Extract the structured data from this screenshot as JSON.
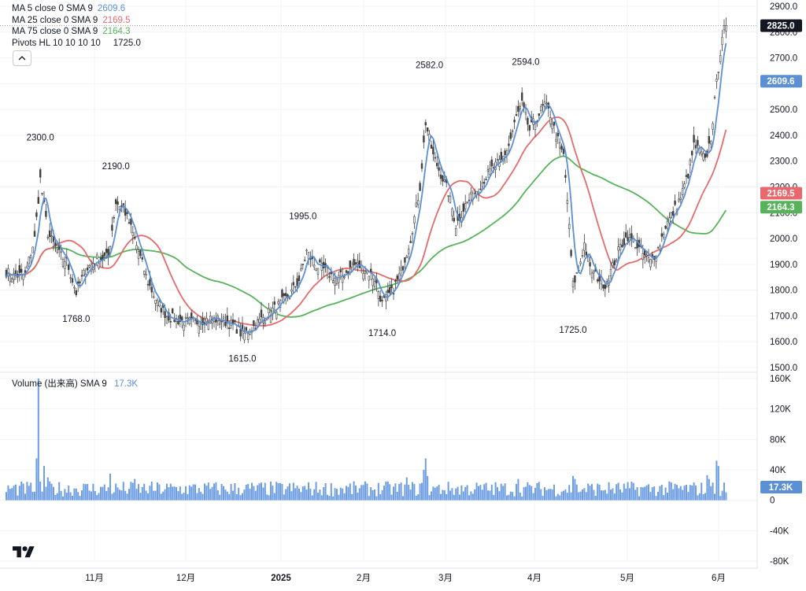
{
  "colors": {
    "ma5": "#5b8fd6",
    "ma25": "#e8696b",
    "ma75": "#57b35a",
    "candle_up_fill": "#ffffff",
    "candle_down_fill": "#404040",
    "volume": "#6d9de2",
    "grid": "#f0f3fa",
    "text": "#131722",
    "axis_label_dark": "#131722"
  },
  "legend": {
    "ma5": {
      "label": "MA 5 close 0 SMA 9",
      "value": "2609.6"
    },
    "ma25": {
      "label": "MA 25 close 0 SMA 9",
      "value": "2169.5"
    },
    "ma75": {
      "label": "MA 75 close 0 SMA 9",
      "value": "2164.3"
    },
    "pivots": {
      "label": "Pivots HL 10 10 10 10",
      "value": "1725.0"
    }
  },
  "volume_legend": {
    "label": "Volume (出来高) SMA 9",
    "value": "17.3K"
  },
  "icons": {
    "collapse": "chevron-up-icon",
    "logo": "tradingview-logo"
  },
  "chart_data": [
    {
      "type": "candlestick",
      "title": "",
      "ylim": [
        1500,
        2900
      ],
      "y_ticks": [
        "2900.0",
        "2800.0",
        "2700.0",
        "2600.0",
        "2500.0",
        "2400.0",
        "2300.0",
        "2200.0",
        "2100.0",
        "2000.0",
        "1900.0",
        "1800.0",
        "1700.0",
        "1600.0",
        "1500.0"
      ],
      "x_ticks": [
        "11月",
        "12月",
        "2025",
        "2月",
        "3月",
        "4月",
        "5月",
        "6月"
      ],
      "price_badges": [
        {
          "value": "2825.0",
          "series": "last"
        },
        {
          "value": "2609.6",
          "series": "ma5"
        },
        {
          "value": "2169.5",
          "series": "ma25"
        },
        {
          "value": "2164.3",
          "series": "ma75"
        }
      ],
      "pivot_labels": [
        {
          "text": "2300.0",
          "kind": "high",
          "value": 2300,
          "bar": 18
        },
        {
          "text": "2190.0",
          "kind": "high",
          "value": 2190,
          "bar": 58
        },
        {
          "text": "1995.0",
          "kind": "high",
          "value": 1995,
          "bar": 157
        },
        {
          "text": "2582.0",
          "kind": "high",
          "value": 2582,
          "bar": 224
        },
        {
          "text": "2594.0",
          "kind": "high",
          "value": 2594,
          "bar": 275
        },
        {
          "text": "1768.0",
          "kind": "low",
          "value": 1768,
          "bar": 37
        },
        {
          "text": "1615.0",
          "kind": "low",
          "value": 1615,
          "bar": 125
        },
        {
          "text": "1714.0",
          "kind": "low",
          "value": 1714,
          "bar": 199
        },
        {
          "text": "1725.0",
          "kind": "low",
          "value": 1725,
          "bar": 300
        }
      ],
      "anchors": [
        [
          0,
          1870
        ],
        [
          4,
          1855
        ],
        [
          10,
          1860
        ],
        [
          15,
          2000
        ],
        [
          18,
          2230
        ],
        [
          22,
          2020
        ],
        [
          28,
          1940
        ],
        [
          32,
          1910
        ],
        [
          37,
          1790
        ],
        [
          42,
          1880
        ],
        [
          48,
          1920
        ],
        [
          54,
          1930
        ],
        [
          58,
          2140
        ],
        [
          62,
          2120
        ],
        [
          66,
          2040
        ],
        [
          70,
          1950
        ],
        [
          75,
          1830
        ],
        [
          80,
          1750
        ],
        [
          85,
          1700
        ],
        [
          92,
          1680
        ],
        [
          100,
          1675
        ],
        [
          108,
          1690
        ],
        [
          115,
          1680
        ],
        [
          121,
          1660
        ],
        [
          125,
          1625
        ],
        [
          131,
          1660
        ],
        [
          137,
          1700
        ],
        [
          144,
          1740
        ],
        [
          150,
          1780
        ],
        [
          155,
          1840
        ],
        [
          159,
          1950
        ],
        [
          163,
          1900
        ],
        [
          168,
          1880
        ],
        [
          175,
          1840
        ],
        [
          180,
          1870
        ],
        [
          185,
          1900
        ],
        [
          190,
          1880
        ],
        [
          195,
          1845
        ],
        [
          199,
          1750
        ],
        [
          204,
          1790
        ],
        [
          209,
          1870
        ],
        [
          214,
          2000
        ],
        [
          219,
          2200
        ],
        [
          222,
          2450
        ],
        [
          226,
          2320
        ],
        [
          230,
          2250
        ],
        [
          234,
          2180
        ],
        [
          238,
          2050
        ],
        [
          243,
          2130
        ],
        [
          248,
          2180
        ],
        [
          252,
          2220
        ],
        [
          257,
          2270
        ],
        [
          262,
          2300
        ],
        [
          266,
          2360
        ],
        [
          270,
          2470
        ],
        [
          273,
          2520
        ],
        [
          277,
          2420
        ],
        [
          281,
          2470
        ],
        [
          285,
          2520
        ],
        [
          288,
          2480
        ],
        [
          291,
          2400
        ],
        [
          295,
          2320
        ],
        [
          297,
          2150
        ],
        [
          300,
          1820
        ],
        [
          303,
          1880
        ],
        [
          306,
          1980
        ],
        [
          309,
          1880
        ],
        [
          313,
          1850
        ],
        [
          317,
          1820
        ],
        [
          321,
          1890
        ],
        [
          325,
          1970
        ],
        [
          329,
          2010
        ],
        [
          333,
          1980
        ],
        [
          337,
          1940
        ],
        [
          341,
          1910
        ],
        [
          345,
          1960
        ],
        [
          349,
          2050
        ],
        [
          353,
          2100
        ],
        [
          357,
          2160
        ],
        [
          361,
          2250
        ],
        [
          364,
          2360
        ],
        [
          367,
          2340
        ],
        [
          370,
          2300
        ],
        [
          373,
          2390
        ],
        [
          376,
          2600
        ],
        [
          379,
          2790
        ],
        [
          381,
          2825
        ]
      ],
      "volume": {
        "ylim": [
          -80000,
          160000
        ],
        "y_ticks": [
          "160K",
          "120K",
          "80K",
          "40K",
          "0",
          "-40K",
          "-80K"
        ],
        "last": "17.3K",
        "spikes": [
          [
            16,
            55000
          ],
          [
            17,
            160000
          ],
          [
            20,
            45000
          ],
          [
            22,
            30000
          ],
          [
            55,
            35000
          ],
          [
            68,
            28000
          ],
          [
            212,
            30000
          ],
          [
            221,
            40000
          ],
          [
            222,
            55000
          ],
          [
            223,
            32000
          ],
          [
            271,
            28000
          ],
          [
            300,
            32000
          ],
          [
            301,
            28000
          ],
          [
            371,
            33000
          ],
          [
            372,
            28000
          ],
          [
            376,
            52000
          ],
          [
            377,
            45000
          ]
        ]
      }
    }
  ]
}
